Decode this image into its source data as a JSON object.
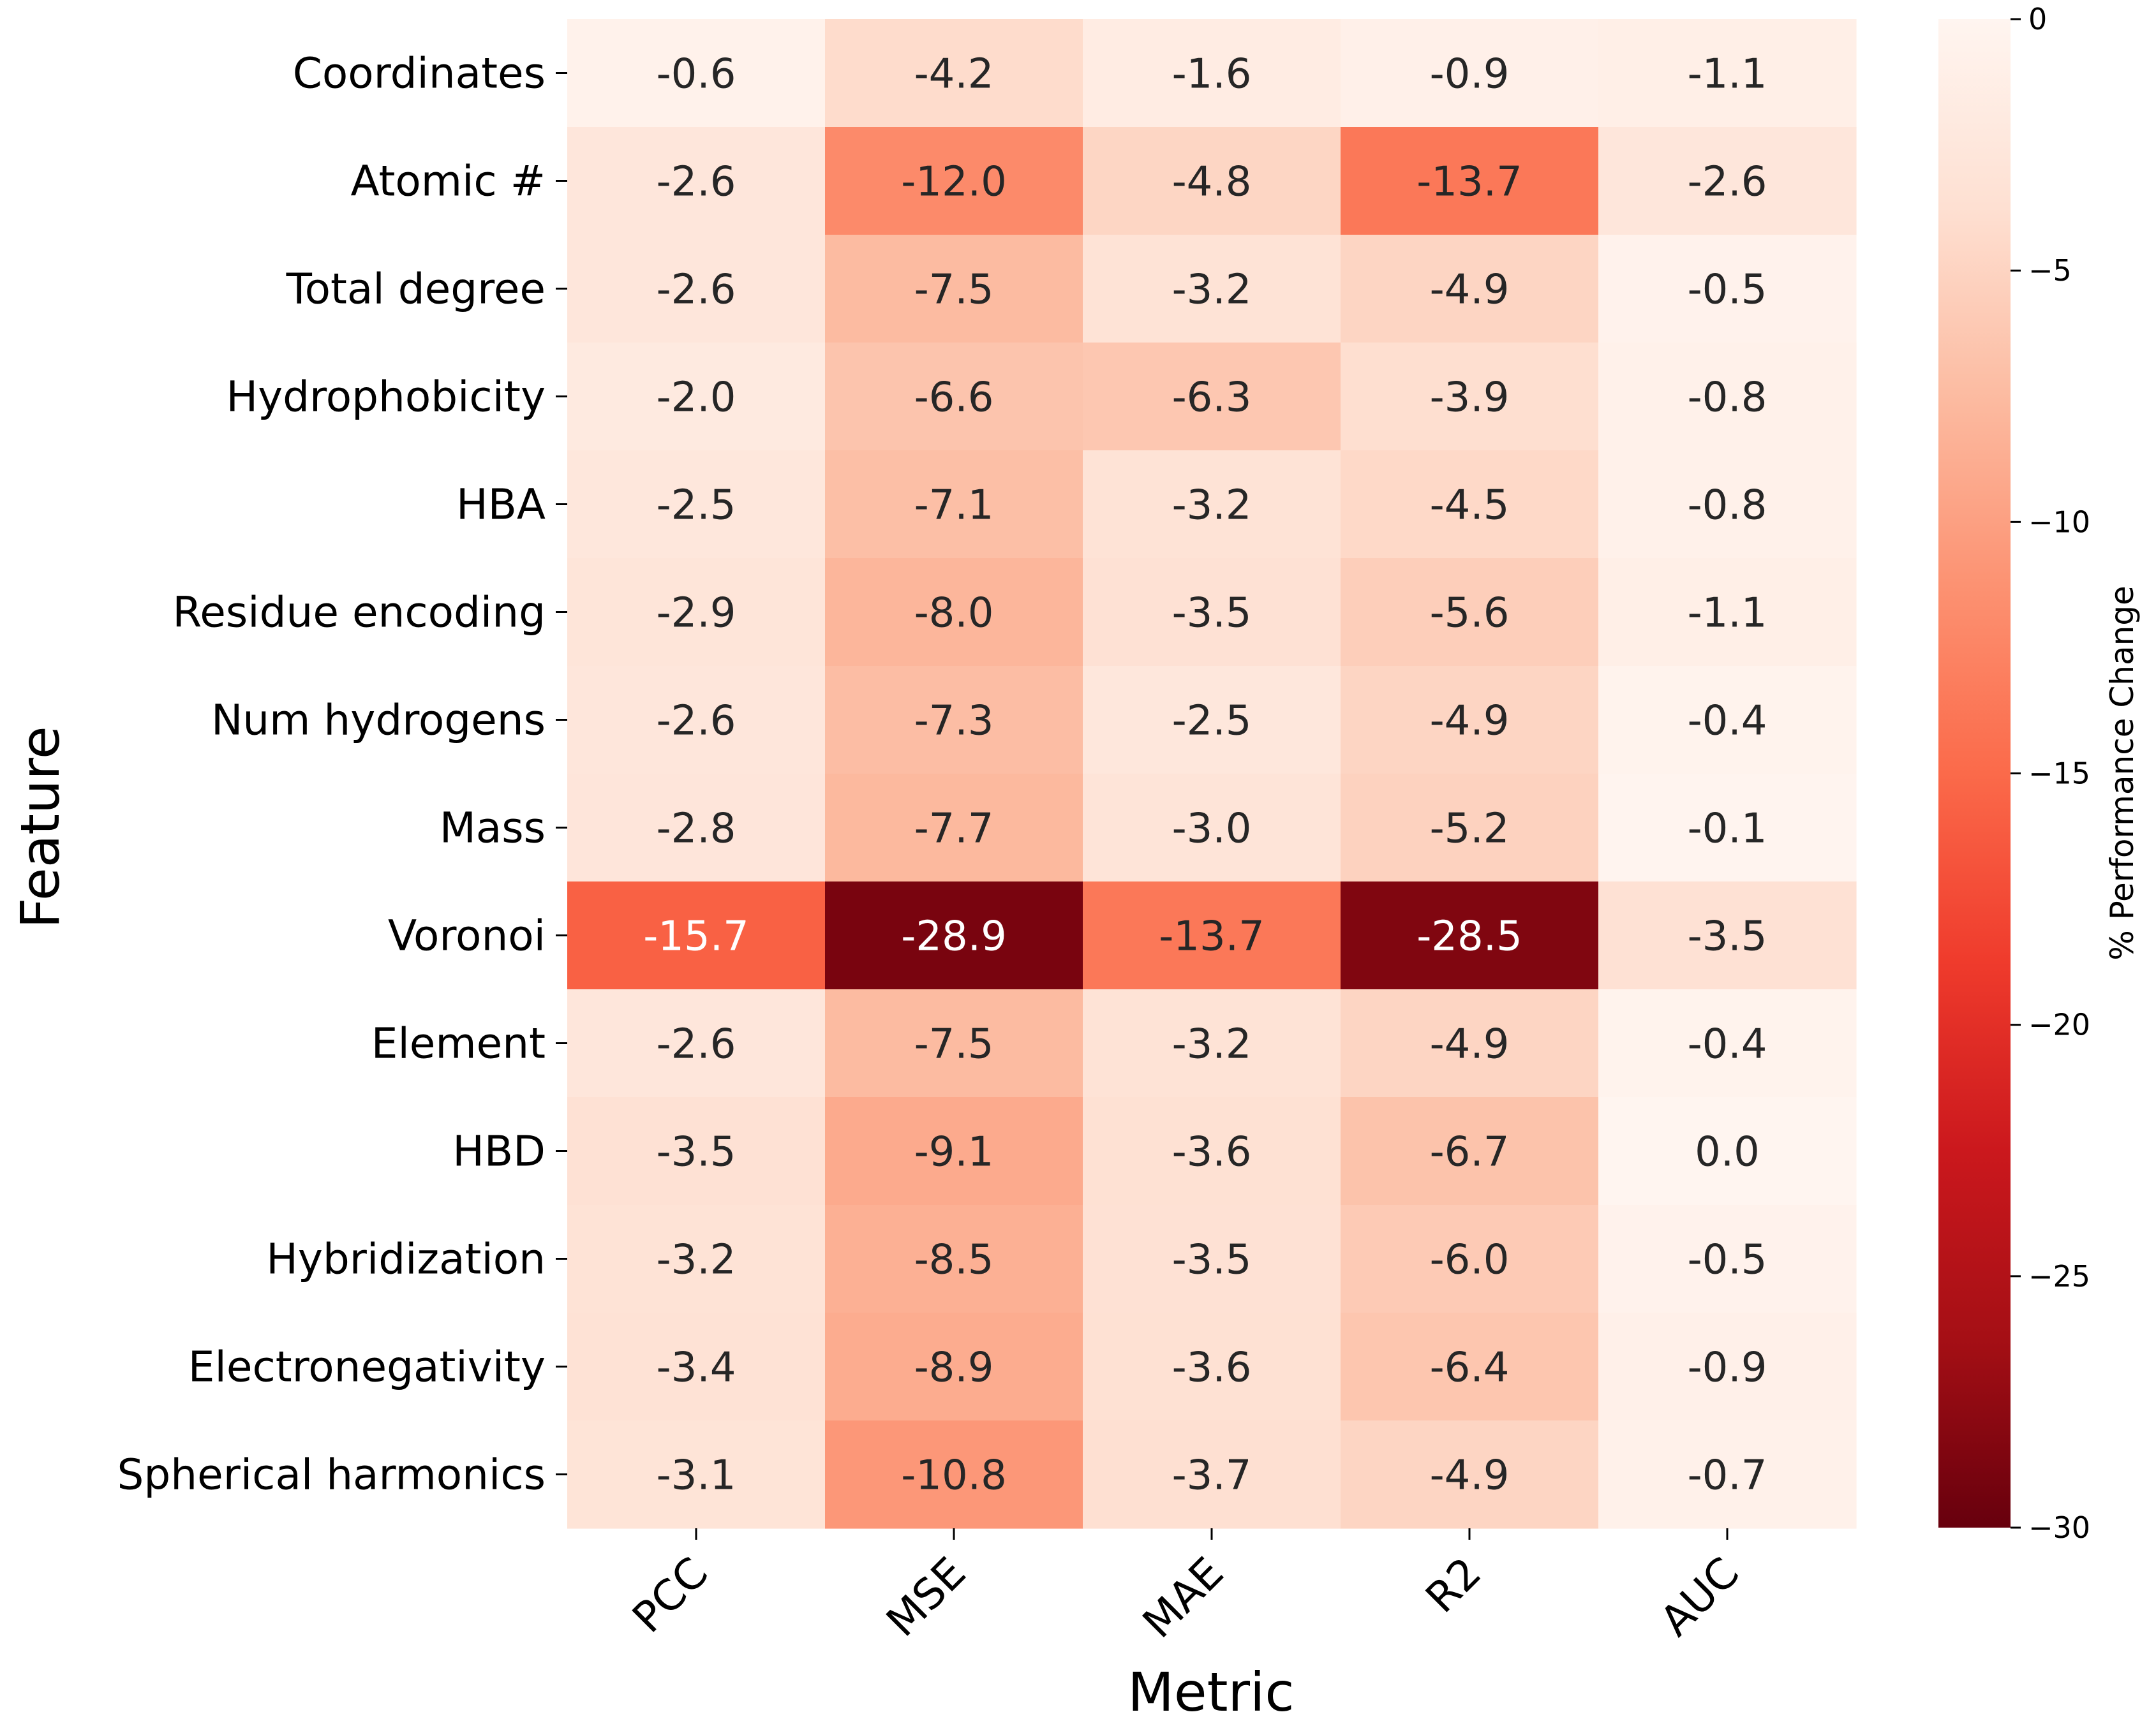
{
  "chart_data": {
    "type": "heatmap",
    "title": "",
    "xlabel": "Metric",
    "ylabel": "Feature",
    "colorbar_label": "% Performance Change",
    "columns": [
      "PCC",
      "MSE",
      "MAE",
      "R2",
      "AUC"
    ],
    "rows": [
      "Coordinates",
      "Atomic #",
      "Total degree",
      "Hydrophobicity",
      "HBA",
      "Residue encoding",
      "Num hydrogens",
      "Mass",
      "Voronoi",
      "Element",
      "HBD",
      "Hybridization",
      "Electronegativity",
      "Spherical harmonics"
    ],
    "values": [
      [
        -0.6,
        -4.2,
        -1.6,
        -0.9,
        -1.1
      ],
      [
        -2.6,
        -12.0,
        -4.8,
        -13.7,
        -2.6
      ],
      [
        -2.6,
        -7.5,
        -3.2,
        -4.9,
        -0.5
      ],
      [
        -2.0,
        -6.6,
        -6.3,
        -3.9,
        -0.8
      ],
      [
        -2.5,
        -7.1,
        -3.2,
        -4.5,
        -0.8
      ],
      [
        -2.9,
        -8.0,
        -3.5,
        -5.6,
        -1.1
      ],
      [
        -2.6,
        -7.3,
        -2.5,
        -4.9,
        -0.4
      ],
      [
        -2.8,
        -7.7,
        -3.0,
        -5.2,
        -0.1
      ],
      [
        -15.7,
        -28.9,
        -13.7,
        -28.5,
        -3.5
      ],
      [
        -2.6,
        -7.5,
        -3.2,
        -4.9,
        -0.4
      ],
      [
        -3.5,
        -9.1,
        -3.6,
        -6.7,
        0.0
      ],
      [
        -3.2,
        -8.5,
        -3.5,
        -6.0,
        -0.5
      ],
      [
        -3.4,
        -8.9,
        -3.6,
        -6.4,
        -0.9
      ],
      [
        -3.1,
        -10.8,
        -3.7,
        -4.9,
        -0.7
      ]
    ],
    "labels": [
      [
        "-0.6",
        "-4.2",
        "-1.6",
        "-0.9",
        "-1.1"
      ],
      [
        "-2.6",
        "-12.0",
        "-4.8",
        "-13.7",
        "-2.6"
      ],
      [
        "-2.6",
        "-7.5",
        "-3.2",
        "-4.9",
        "-0.5"
      ],
      [
        "-2.0",
        "-6.6",
        "-6.3",
        "-3.9",
        "-0.8"
      ],
      [
        "-2.5",
        "-7.1",
        "-3.2",
        "-4.5",
        "-0.8"
      ],
      [
        "-2.9",
        "-8.0",
        "-3.5",
        "-5.6",
        "-1.1"
      ],
      [
        "-2.6",
        "-7.3",
        "-2.5",
        "-4.9",
        "-0.4"
      ],
      [
        "-2.8",
        "-7.7",
        "-3.0",
        "-5.2",
        "-0.1"
      ],
      [
        "-15.7",
        "-28.9",
        "-13.7",
        "-28.5",
        "-3.5"
      ],
      [
        "-2.6",
        "-7.5",
        "-3.2",
        "-4.9",
        "-0.4"
      ],
      [
        "-3.5",
        "-9.1",
        "-3.6",
        "-6.7",
        "0.0"
      ],
      [
        "-3.2",
        "-8.5",
        "-3.5",
        "-6.0",
        "-0.5"
      ],
      [
        "-3.4",
        "-8.9",
        "-3.6",
        "-6.4",
        "-0.9"
      ],
      [
        "-3.1",
        "-10.8",
        "-3.7",
        "-4.9",
        "-0.7"
      ]
    ],
    "colorbar_ticks": [
      0,
      -5,
      -10,
      -15,
      -20,
      -25,
      -30
    ],
    "colorbar_tick_labels": [
      "0",
      "−5",
      "−10",
      "−15",
      "−20",
      "−25",
      "−30"
    ],
    "vmin": -30,
    "vmax": 0,
    "colormap": "Reds (reversed)",
    "colormap_stops": [
      "#67000d",
      "#a50f15",
      "#cb181d",
      "#ef3b2c",
      "#fb6a4a",
      "#fc9272",
      "#fcbba1",
      "#fee0d2",
      "#fff5f0"
    ],
    "grid": false
  }
}
